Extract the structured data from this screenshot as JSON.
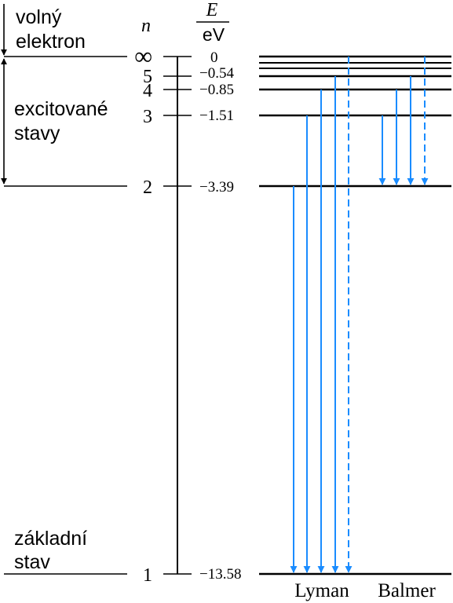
{
  "labels": {
    "free_electron": [
      "volný",
      "elektron"
    ],
    "excited_states": [
      "excitované",
      "stavy"
    ],
    "ground_state": [
      "základní",
      "stav"
    ],
    "n_header": "n",
    "E_numerator": "E",
    "E_denominator": "eV",
    "lyman": "Lyman",
    "balmer": "Balmer"
  },
  "levels": [
    {
      "n": "∞",
      "energy": "0"
    },
    {
      "n": "5",
      "energy": "−0.54"
    },
    {
      "n": "4",
      "energy": "−0.85"
    },
    {
      "n": "3",
      "energy": "−1.51"
    },
    {
      "n": "2",
      "energy": "−3.39"
    },
    {
      "n": "1",
      "energy": "−13.58"
    }
  ],
  "colors": {
    "arrow": "#1a8cff",
    "line": "#000000"
  }
}
